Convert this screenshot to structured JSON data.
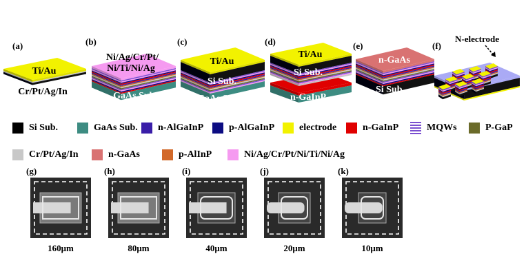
{
  "panels": [
    {
      "label": "(a)",
      "texts": [
        "Ti/Au",
        "Cr/Pt/Ag/In"
      ]
    },
    {
      "label": "(b)",
      "texts": [
        "Ni/Ag/Cr/Pt/",
        "Ni/Ti/Ni/Ag",
        "GaAs Sub."
      ]
    },
    {
      "label": "(c)",
      "texts": [
        "Ti/Au",
        "Si Sub.",
        "GaAs Sub."
      ]
    },
    {
      "label": "(d)",
      "texts": [
        "Ti/Au",
        "Si Sub.",
        "n-GaInP"
      ]
    },
    {
      "label": "(e)",
      "texts": [
        "n-GaAs",
        "Si Sub."
      ]
    },
    {
      "label": "(f)",
      "texts": [
        "N-electrode"
      ]
    }
  ],
  "legend": [
    {
      "label": "Si Sub.",
      "color": "#000000"
    },
    {
      "label": "GaAs Sub.",
      "color": "#3d8c82"
    },
    {
      "label": "n-AlGaInP",
      "color": "#3a1ea8"
    },
    {
      "label": "p-AlGaInP",
      "color": "#0c0c82"
    },
    {
      "label": "electrode",
      "color": "#f2f200"
    },
    {
      "label": "n-GaInP",
      "color": "#e00000"
    },
    {
      "label": "MQWs",
      "color": "#7a4fd0",
      "pattern": "stripes"
    },
    {
      "label": "P-GaP",
      "color": "#6b6b2a"
    },
    {
      "label": "Cr/Pt/Ag/In",
      "color": "#c8c8c8"
    },
    {
      "label": "n-GaAs",
      "color": "#d97272"
    },
    {
      "label": "p-AlInP",
      "color": "#d2692a"
    },
    {
      "label": "Ni/Ag/Cr/Pt/Ni/Ti/Ni/Ag",
      "color": "#f59af0"
    }
  ],
  "sem": [
    {
      "label": "(g)",
      "size": "160μm"
    },
    {
      "label": "(h)",
      "size": "80μm"
    },
    {
      "label": "(i)",
      "size": "40μm"
    },
    {
      "label": "(j)",
      "size": "20μm"
    },
    {
      "label": "(k)",
      "size": "10μm"
    }
  ]
}
